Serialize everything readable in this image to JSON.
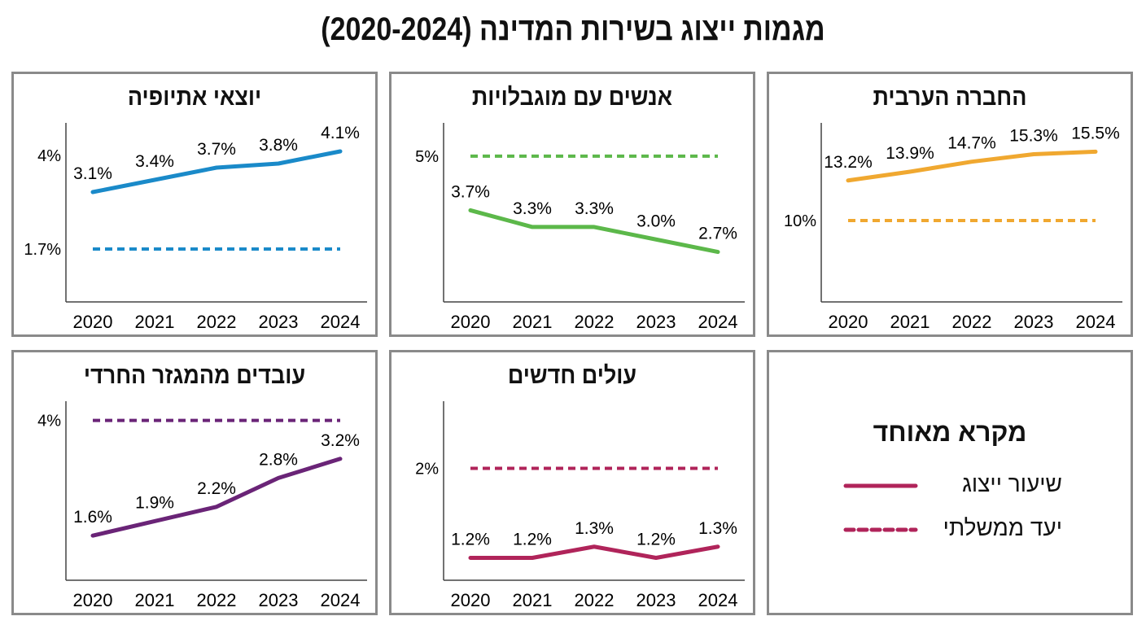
{
  "title": "מגמות ייצוג בשירות המדינה (2020-2024)",
  "legend": {
    "title": "מקרא מאוחד",
    "items": [
      {
        "label": "שיעור ייצוג",
        "style": "solid",
        "color": "#b0245a"
      },
      {
        "label": "יעד ממשלתי",
        "style": "dashed",
        "color": "#b0245a"
      }
    ]
  },
  "chart_data": [
    {
      "type": "line",
      "title": "החברה הערבית",
      "color": "#f0a830",
      "categories": [
        "2020",
        "2021",
        "2022",
        "2023",
        "2024"
      ],
      "values": [
        13.2,
        13.9,
        14.7,
        15.3,
        15.5
      ],
      "value_labels": [
        "13.2%",
        "13.9%",
        "14.7%",
        "15.3%",
        "15.5%"
      ],
      "target": 10,
      "yticks": [
        {
          "value": 10,
          "label": "10%"
        }
      ],
      "ylim": [
        3.5,
        17.8
      ]
    },
    {
      "type": "line",
      "title": "אנשים עם מוגבלויות",
      "color": "#5cb84a",
      "categories": [
        "2020",
        "2021",
        "2022",
        "2023",
        "2024"
      ],
      "values": [
        3.7,
        3.3,
        3.3,
        3.0,
        2.7
      ],
      "value_labels": [
        "3.7%",
        "3.3%",
        "3.3%",
        "3.0%",
        "2.7%"
      ],
      "target": 5,
      "yticks": [
        {
          "value": 5,
          "label": "5%"
        }
      ],
      "ylim": [
        1.5,
        5.8
      ]
    },
    {
      "type": "line",
      "title": "יוצאי אתיופיה",
      "color": "#1a8ac9",
      "categories": [
        "2020",
        "2021",
        "2022",
        "2023",
        "2024"
      ],
      "values": [
        3.1,
        3.4,
        3.7,
        3.8,
        4.1
      ],
      "value_labels": [
        "3.1%",
        "3.4%",
        "3.7%",
        "3.8%",
        "4.1%"
      ],
      "target": 1.7,
      "yticks": [
        {
          "value": 4,
          "label": "4%"
        },
        {
          "value": 1.7,
          "label": "1.7%"
        }
      ],
      "ylim": [
        0.4,
        4.8
      ]
    },
    {
      "type": "line",
      "title": "עולים חדשים",
      "color": "#b0245a",
      "categories": [
        "2020",
        "2021",
        "2022",
        "2023",
        "2024"
      ],
      "values": [
        1.2,
        1.2,
        1.3,
        1.2,
        1.3
      ],
      "value_labels": [
        "1.2%",
        "1.2%",
        "1.3%",
        "1.2%",
        "1.3%"
      ],
      "target": 2,
      "yticks": [
        {
          "value": 2,
          "label": "2%"
        }
      ],
      "ylim": [
        1.0,
        2.6
      ]
    },
    {
      "type": "line",
      "title": "עובדים מהמגזר החרדי",
      "color": "#6a2477",
      "categories": [
        "2020",
        "2021",
        "2022",
        "2023",
        "2024"
      ],
      "values": [
        1.6,
        1.9,
        2.2,
        2.8,
        3.2
      ],
      "value_labels": [
        "1.6%",
        "1.9%",
        "2.2%",
        "2.8%",
        "3.2%"
      ],
      "target": 4,
      "yticks": [
        {
          "value": 4,
          "label": "4%"
        }
      ],
      "ylim": [
        0.67,
        4.4
      ]
    }
  ]
}
